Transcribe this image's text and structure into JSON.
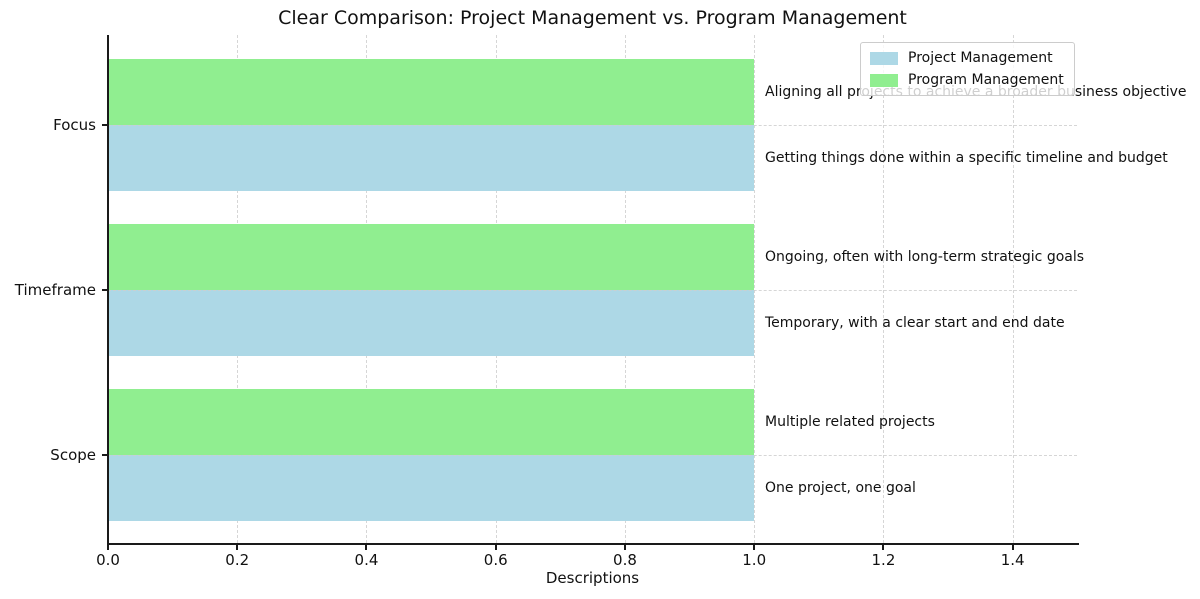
{
  "chart_data": {
    "type": "bar",
    "orientation": "horizontal",
    "title": "Clear Comparison: Project Management vs. Program Management",
    "xlabel": "Descriptions",
    "ylabel": "",
    "xlim": [
      0,
      1.5
    ],
    "xtick_values": [
      0.0,
      0.2,
      0.4,
      0.6,
      0.8,
      1.0,
      1.2,
      1.4
    ],
    "xtick_labels": [
      "0.0",
      "0.2",
      "0.4",
      "0.6",
      "0.8",
      "1.0",
      "1.2",
      "1.4"
    ],
    "grid": "dashed",
    "categories": [
      "Focus",
      "Timeframe",
      "Scope"
    ],
    "series": [
      {
        "name": "Project Management",
        "color": "#ADD8E6",
        "values": [
          1.0,
          1.0,
          1.0
        ],
        "annotations": [
          "Getting things done within a specific timeline and budget",
          "Temporary, with a clear start and end date",
          "One project, one goal"
        ]
      },
      {
        "name": "Program Management",
        "color": "#90EE90",
        "values": [
          1.0,
          1.0,
          1.0
        ],
        "annotations": [
          "Aligning all projects to achieve a broader business objective",
          "Ongoing, often with long-term strategic goals",
          "Multiple related projects"
        ]
      }
    ],
    "legend": {
      "position": "upper right",
      "entries": [
        "Project Management",
        "Program Management"
      ]
    }
  },
  "colors": {
    "project": "#ADD8E6",
    "program": "#90EE90",
    "spine": "#1a1a1a",
    "grid": "#d6d6d6",
    "background": "#ffffff"
  }
}
